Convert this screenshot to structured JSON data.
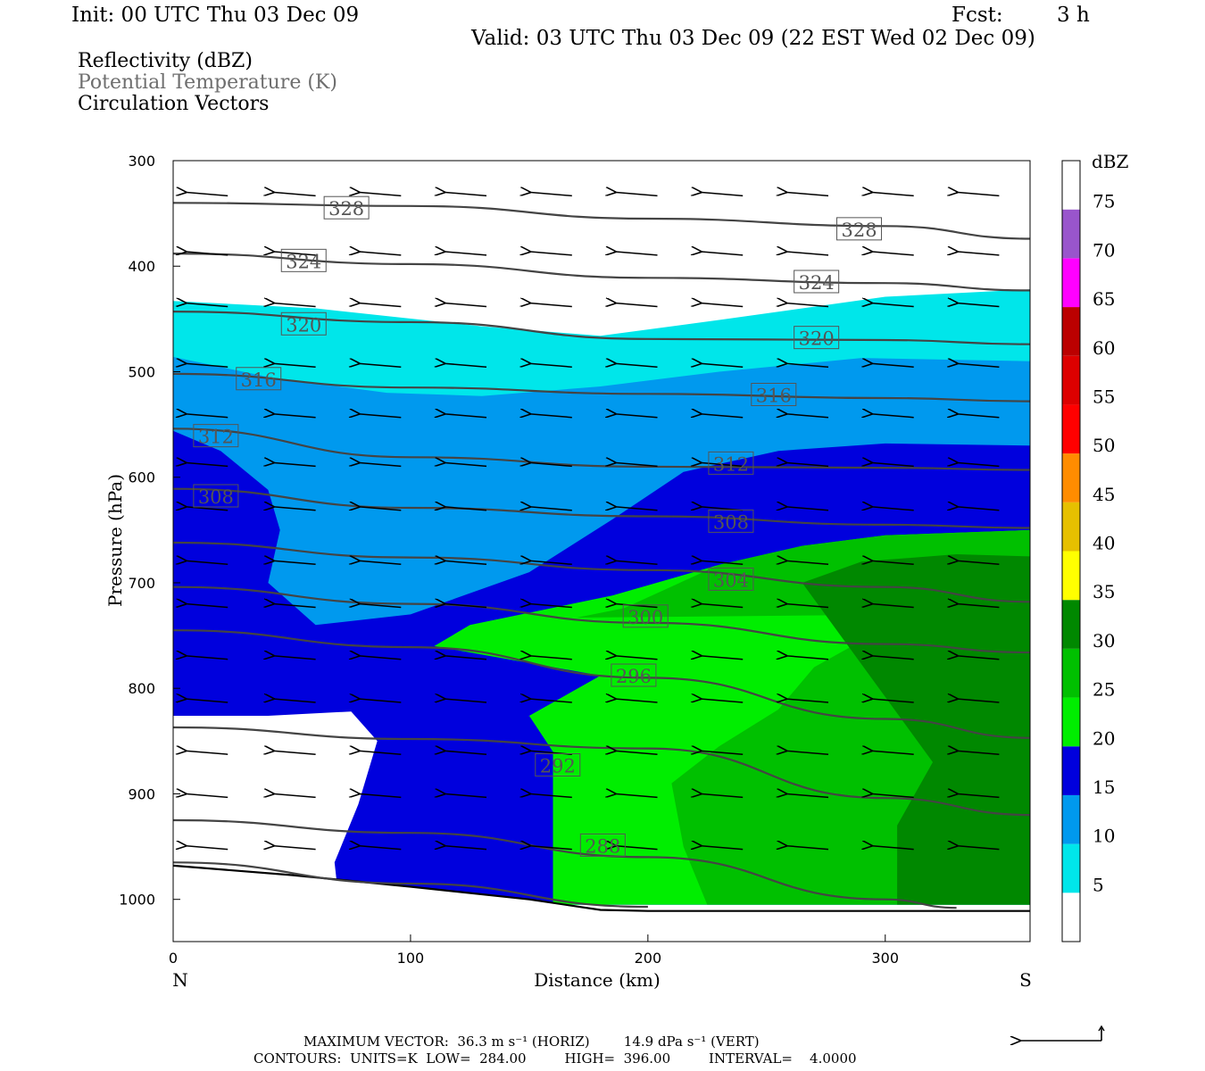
{
  "header": {
    "init": "Init: 00 UTC Thu 03 Dec 09",
    "fcst_label": "Fcst:",
    "fcst_value": "3 h",
    "valid": "Valid: 03 UTC Thu 03 Dec 09 (22 EST Wed 02 Dec 09)"
  },
  "fields": [
    {
      "label": "Reflectivity (dBZ)",
      "color": "#000000"
    },
    {
      "label": "Potential Temperature (K)",
      "color": "#6e6e6e"
    },
    {
      "label": "Circulation Vectors",
      "color": "#000000"
    }
  ],
  "footer": {
    "max_vector": "MAXIMUM VECTOR:  36.3 m s⁻¹ (HORIZ)        14.9 dPa s⁻¹ (VERT)",
    "contours": "CONTOURS:  UNITS=K  LOW=  284.00         HIGH=  396.00         INTERVAL=    4.0000"
  },
  "chart_data": {
    "type": "cross-section (filled contour + line contour + vectors)",
    "xlabel": "Distance (km)",
    "ylabel": "Pressure (hPa)",
    "xlim": [
      0,
      361
    ],
    "ylim": [
      1040,
      300
    ],
    "x_ticks": [
      0,
      100,
      200,
      300
    ],
    "y_ticks": [
      300,
      400,
      500,
      600,
      700,
      800,
      900,
      1000
    ],
    "x_end_labels": {
      "left": "N",
      "right": "S"
    },
    "colorbar": {
      "title": "dBZ",
      "levels": [
        5,
        10,
        15,
        20,
        25,
        30,
        35,
        40,
        45,
        50,
        55,
        60,
        65,
        70,
        75
      ],
      "colors": [
        "#ffffff",
        "#00e6ea",
        "#0099ee",
        "#0000dd",
        "#00ee00",
        "#00c000",
        "#008800",
        "#ffff00",
        "#e6c000",
        "#ff8c00",
        "#ff0000",
        "#dd0000",
        "#bb0000",
        "#ff00ff",
        "#9955cc",
        "#ffffff"
      ]
    },
    "reflectivity_regions": [
      {
        "dbz": 5,
        "color": "#00e6ea",
        "poly": [
          [
            0,
            433
          ],
          [
            60,
            440
          ],
          [
            130,
            457
          ],
          [
            180,
            466
          ],
          [
            230,
            451
          ],
          [
            300,
            429
          ],
          [
            361,
            422
          ],
          [
            361,
            1005
          ],
          [
            190,
            1005
          ],
          [
            0,
            1005
          ]
        ]
      },
      {
        "dbz": 10,
        "color": "#0099ee",
        "poly": [
          [
            0,
            486
          ],
          [
            40,
            505
          ],
          [
            90,
            520
          ],
          [
            130,
            523
          ],
          [
            180,
            514
          ],
          [
            230,
            500
          ],
          [
            290,
            487
          ],
          [
            361,
            490
          ],
          [
            361,
            1005
          ],
          [
            0,
            1005
          ]
        ]
      },
      {
        "dbz": 15,
        "color": "#0000dd",
        "poly": [
          [
            0,
            556
          ],
          [
            20,
            575
          ],
          [
            40,
            612
          ],
          [
            45,
            650
          ],
          [
            40,
            700
          ],
          [
            60,
            740
          ],
          [
            100,
            730
          ],
          [
            150,
            690
          ],
          [
            185,
            640
          ],
          [
            215,
            595
          ],
          [
            255,
            575
          ],
          [
            300,
            568
          ],
          [
            361,
            570
          ],
          [
            361,
            1005
          ],
          [
            0,
            1005
          ]
        ]
      },
      {
        "dbz": 20,
        "color": "#00ee00",
        "poly": [
          [
            180,
            788
          ],
          [
            110,
            760
          ],
          [
            125,
            740
          ],
          [
            185,
            712
          ],
          [
            230,
            683
          ],
          [
            265,
            665
          ],
          [
            300,
            655
          ],
          [
            361,
            650
          ],
          [
            361,
            1005
          ],
          [
            160,
            1005
          ],
          [
            160,
            860
          ],
          [
            150,
            826
          ]
        ]
      },
      {
        "dbz": 25,
        "color": "#00c000",
        "poly": [
          [
            170,
            733
          ],
          [
            190,
            724
          ],
          [
            230,
            683
          ],
          [
            265,
            665
          ],
          [
            300,
            655
          ],
          [
            361,
            650
          ],
          [
            361,
            1005
          ],
          [
            225,
            1005
          ],
          [
            215,
            950
          ],
          [
            210,
            890
          ],
          [
            230,
            855
          ],
          [
            255,
            820
          ],
          [
            270,
            780
          ],
          [
            290,
            755
          ],
          [
            320,
            730
          ]
        ]
      },
      {
        "dbz": 30,
        "color": "#008800",
        "poly": [
          [
            265,
            700
          ],
          [
            290,
            680
          ],
          [
            330,
            673
          ],
          [
            361,
            675
          ],
          [
            361,
            1005
          ],
          [
            305,
            1005
          ],
          [
            305,
            930
          ],
          [
            320,
            870
          ]
        ]
      },
      {
        "dbz": 0,
        "color": "#ffffff",
        "poly": [
          [
            0,
            826
          ],
          [
            40,
            826
          ],
          [
            75,
            822
          ],
          [
            86,
            850
          ],
          [
            78,
            910
          ],
          [
            68,
            965
          ],
          [
            70,
            1005
          ],
          [
            0,
            1005
          ]
        ]
      }
    ],
    "theta_contours": [
      {
        "theta": 328,
        "points": [
          [
            0,
            340
          ],
          [
            100,
            343
          ],
          [
            200,
            355
          ],
          [
            300,
            362
          ],
          [
            361,
            374
          ]
        ]
      },
      {
        "theta": 324,
        "points": [
          [
            0,
            388
          ],
          [
            100,
            398
          ],
          [
            200,
            411
          ],
          [
            300,
            416
          ],
          [
            361,
            423
          ]
        ]
      },
      {
        "theta": 320,
        "points": [
          [
            0,
            443
          ],
          [
            100,
            453
          ],
          [
            200,
            469
          ],
          [
            300,
            470
          ],
          [
            361,
            474
          ]
        ]
      },
      {
        "theta": 316,
        "points": [
          [
            0,
            502
          ],
          [
            100,
            515
          ],
          [
            200,
            521
          ],
          [
            300,
            525
          ],
          [
            361,
            528
          ]
        ]
      },
      {
        "theta": 312,
        "points": [
          [
            0,
            554
          ],
          [
            100,
            581
          ],
          [
            200,
            590
          ],
          [
            300,
            591
          ],
          [
            361,
            593
          ]
        ]
      },
      {
        "theta": 308,
        "points": [
          [
            0,
            611
          ],
          [
            100,
            629
          ],
          [
            200,
            637
          ],
          [
            300,
            645
          ],
          [
            361,
            648
          ]
        ]
      },
      {
        "theta": 304,
        "points": [
          [
            0,
            662
          ],
          [
            100,
            676
          ],
          [
            200,
            688
          ],
          [
            300,
            704
          ],
          [
            361,
            718
          ]
        ]
      },
      {
        "theta": 300,
        "points": [
          [
            0,
            704
          ],
          [
            100,
            720
          ],
          [
            200,
            738
          ],
          [
            300,
            758
          ],
          [
            361,
            766
          ]
        ]
      },
      {
        "theta": 296,
        "points": [
          [
            0,
            745
          ],
          [
            100,
            761
          ],
          [
            200,
            790
          ],
          [
            300,
            829
          ],
          [
            361,
            847
          ]
        ]
      },
      {
        "theta": 292,
        "points": [
          [
            0,
            837
          ],
          [
            100,
            848
          ],
          [
            200,
            857
          ],
          [
            300,
            904
          ],
          [
            361,
            920
          ]
        ]
      },
      {
        "theta": 288,
        "points": [
          [
            0,
            925
          ],
          [
            100,
            937
          ],
          [
            200,
            960
          ],
          [
            300,
            1000
          ],
          [
            330,
            1008
          ]
        ]
      },
      {
        "theta": 284,
        "points": [
          [
            0,
            965
          ],
          [
            100,
            985
          ],
          [
            200,
            1007
          ]
        ]
      }
    ],
    "theta_label_positions": [
      {
        "text": "328",
        "x": 73,
        "p": 345
      },
      {
        "text": "328",
        "x": 289,
        "p": 365
      },
      {
        "text": "324",
        "x": 55,
        "p": 395
      },
      {
        "text": "324",
        "x": 271,
        "p": 415
      },
      {
        "text": "320",
        "x": 55,
        "p": 455
      },
      {
        "text": "320",
        "x": 271,
        "p": 468
      },
      {
        "text": "316",
        "x": 36,
        "p": 507
      },
      {
        "text": "316",
        "x": 253,
        "p": 522
      },
      {
        "text": "312",
        "x": 18,
        "p": 561
      },
      {
        "text": "312",
        "x": 235,
        "p": 587
      },
      {
        "text": "308",
        "x": 18,
        "p": 618
      },
      {
        "text": "308",
        "x": 235,
        "p": 642
      },
      {
        "text": "304",
        "x": 235,
        "p": 697
      },
      {
        "text": "300",
        "x": 199,
        "p": 732
      },
      {
        "text": "296",
        "x": 194,
        "p": 788
      },
      {
        "text": "292",
        "x": 162,
        "p": 873
      },
      {
        "text": "288",
        "x": 181,
        "p": 949
      }
    ],
    "terrain": [
      [
        0,
        968
      ],
      [
        50,
        977
      ],
      [
        100,
        988
      ],
      [
        150,
        1000
      ],
      [
        180,
        1010
      ],
      [
        200,
        1011
      ],
      [
        361,
        1011
      ]
    ],
    "vector_rows_p": [
      335,
      387,
      440,
      493,
      545,
      587,
      633,
      680,
      725,
      770,
      815,
      860,
      905,
      950
    ],
    "vector_dx_km": -18,
    "reference_vector": "present"
  }
}
